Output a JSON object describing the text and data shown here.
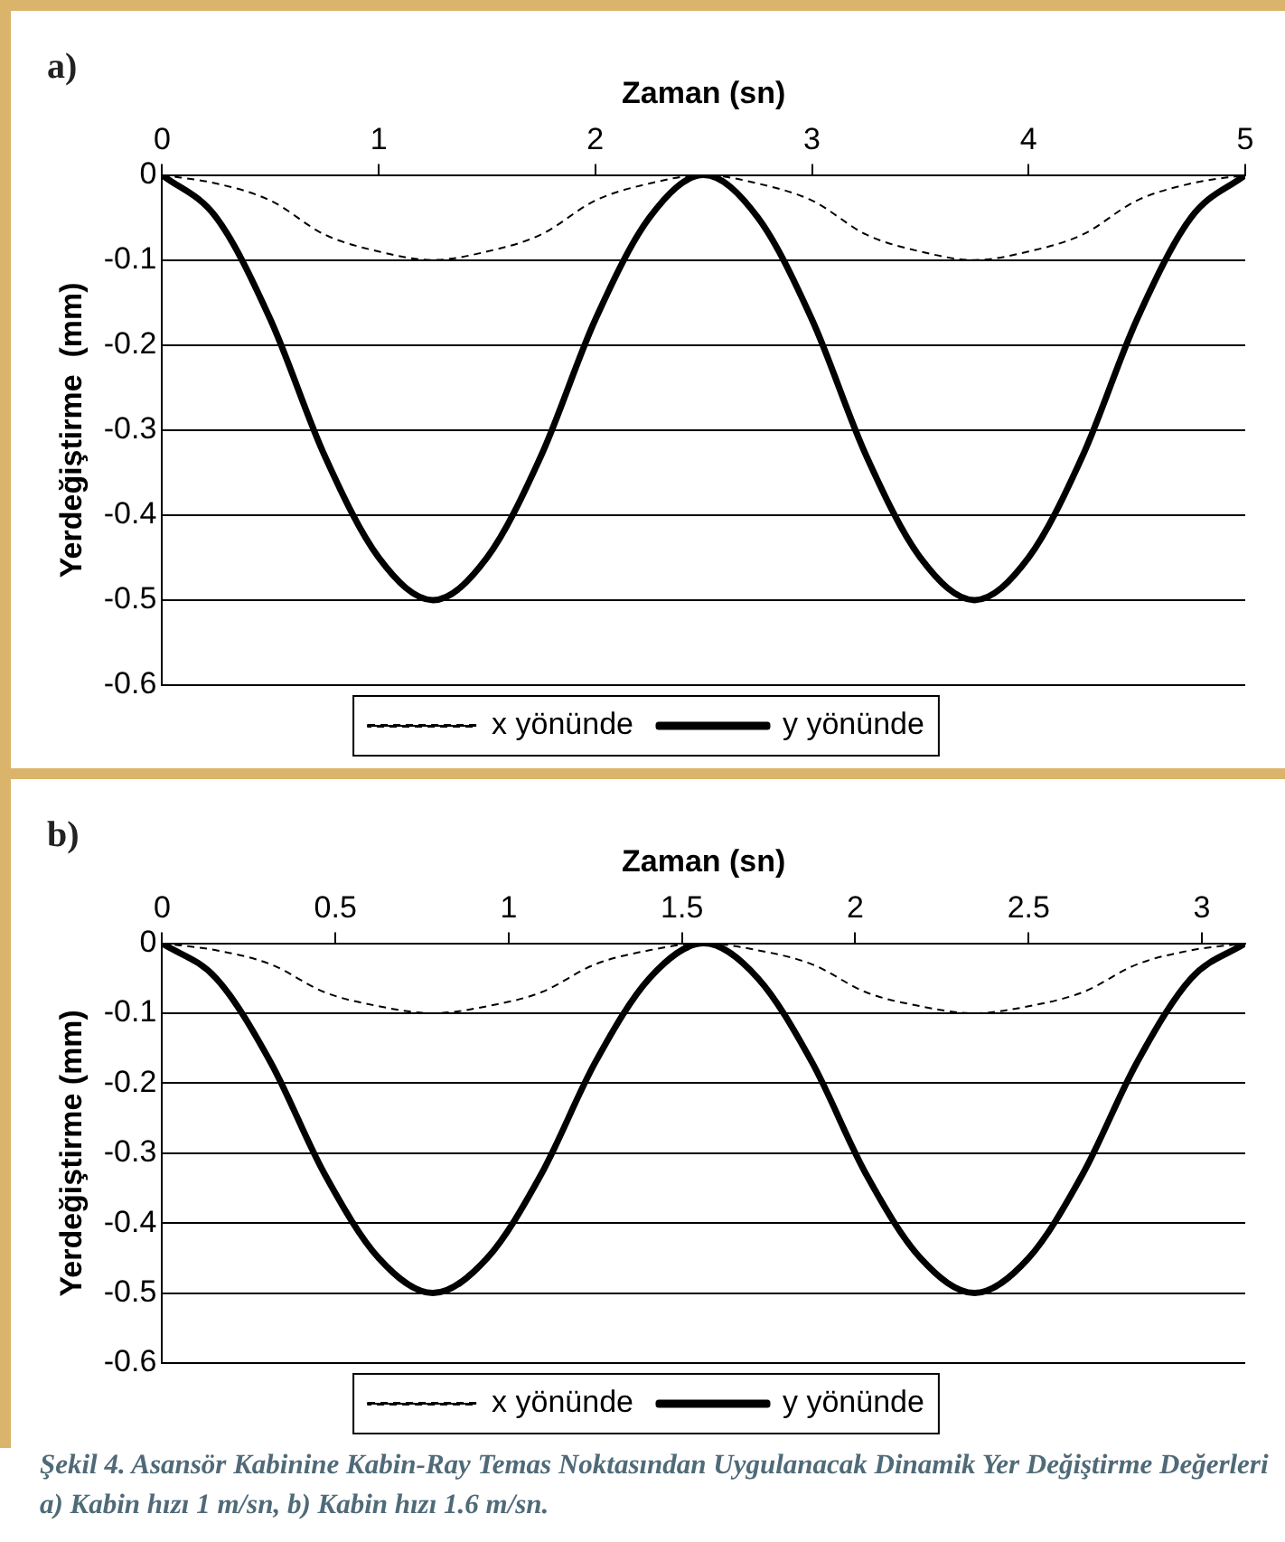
{
  "chart_data": [
    {
      "type": "line",
      "title": "a)",
      "xlabel": "Zaman (sn)",
      "ylabel": "Yerdeğiştirme  (mm)",
      "x": [
        0,
        0.25,
        0.5,
        0.75,
        1,
        1.25,
        1.5,
        1.75,
        2,
        2.25,
        2.5,
        2.75,
        3,
        3.25,
        3.5,
        3.75,
        4,
        4.25,
        4.5,
        4.75,
        5
      ],
      "series": [
        {
          "name": "x yönünde",
          "color": "#000000",
          "line_style": "dashed",
          "values": [
            0,
            -0.01,
            -0.03,
            -0.07,
            -0.09,
            -0.1,
            -0.09,
            -0.07,
            -0.03,
            -0.01,
            0,
            -0.01,
            -0.03,
            -0.07,
            -0.09,
            -0.1,
            -0.09,
            -0.07,
            -0.03,
            -0.01,
            0
          ]
        },
        {
          "name": "y yönünde",
          "color": "#000000",
          "line_style": "solid",
          "values": [
            0,
            -0.05,
            -0.17,
            -0.33,
            -0.45,
            -0.5,
            -0.45,
            -0.33,
            -0.17,
            -0.05,
            0,
            -0.05,
            -0.17,
            -0.33,
            -0.45,
            -0.5,
            -0.45,
            -0.33,
            -0.17,
            -0.05,
            0
          ]
        }
      ],
      "xlim": [
        0,
        5
      ],
      "xticks": [
        0,
        1,
        2,
        3,
        4,
        5
      ],
      "ylim": [
        -0.6,
        0
      ],
      "yticks": [
        -0.6,
        -0.5,
        -0.4,
        -0.3,
        -0.2,
        -0.1,
        0
      ],
      "grid": "y",
      "legend": "bottom",
      "marker": "none"
    },
    {
      "type": "line",
      "title": "b)",
      "xlabel": "Zaman (sn)",
      "ylabel": "Yerdeğiştirme (mm)",
      "x": [
        0,
        0.156,
        0.313,
        0.469,
        0.625,
        0.781,
        0.938,
        1.094,
        1.25,
        1.406,
        1.563,
        1.719,
        1.875,
        2.031,
        2.188,
        2.344,
        2.5,
        2.656,
        2.813,
        2.969,
        3.125
      ],
      "series": [
        {
          "name": "x yönünde",
          "color": "#000000",
          "line_style": "dashed",
          "values": [
            0,
            -0.01,
            -0.03,
            -0.07,
            -0.09,
            -0.1,
            -0.09,
            -0.07,
            -0.03,
            -0.01,
            0,
            -0.01,
            -0.03,
            -0.07,
            -0.09,
            -0.1,
            -0.09,
            -0.07,
            -0.03,
            -0.01,
            0
          ]
        },
        {
          "name": "y yönünde",
          "color": "#000000",
          "line_style": "solid",
          "values": [
            0,
            -0.05,
            -0.17,
            -0.33,
            -0.45,
            -0.5,
            -0.45,
            -0.33,
            -0.17,
            -0.05,
            0,
            -0.05,
            -0.17,
            -0.33,
            -0.45,
            -0.5,
            -0.45,
            -0.33,
            -0.17,
            -0.05,
            0
          ]
        }
      ],
      "xlim": [
        0,
        3.125
      ],
      "xticks": [
        0,
        0.5,
        1,
        1.5,
        2,
        2.5,
        3
      ],
      "ylim": [
        -0.6,
        0
      ],
      "yticks": [
        -0.6,
        -0.5,
        -0.4,
        -0.3,
        -0.2,
        -0.1,
        0
      ],
      "grid": "y",
      "legend": "bottom",
      "marker": "none",
      "annotations": [
        "Şekil 4. Asansör Kabinine Kabin-Ray Temas Noktasından Uygulanacak Dinamik Yer Değiştirme Değerleri a) Kabin hızı 1 m/sn, b) Kabin hızı 1.6 m/sn."
      ]
    }
  ]
}
